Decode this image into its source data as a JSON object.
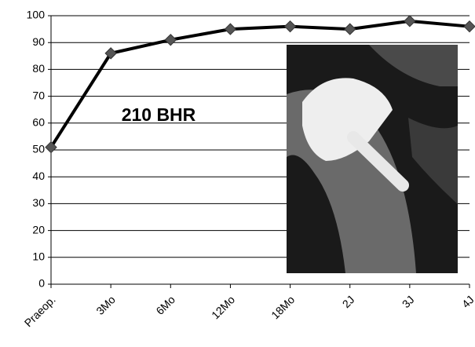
{
  "chart_data": {
    "type": "line",
    "annotation": "210 BHR",
    "categories": [
      "Praeop.",
      "3Mo",
      "6Mo",
      "12Mo",
      "18Mo",
      "2J",
      "3J",
      "4J"
    ],
    "values": [
      51,
      86,
      91,
      95,
      96,
      95,
      98,
      96
    ],
    "color": "#000000",
    "marker_color": "#555555",
    "ylim": [
      0,
      100
    ],
    "yticks": [
      0,
      10,
      20,
      30,
      40,
      50,
      60,
      70,
      80,
      90,
      100
    ],
    "grid": true
  }
}
